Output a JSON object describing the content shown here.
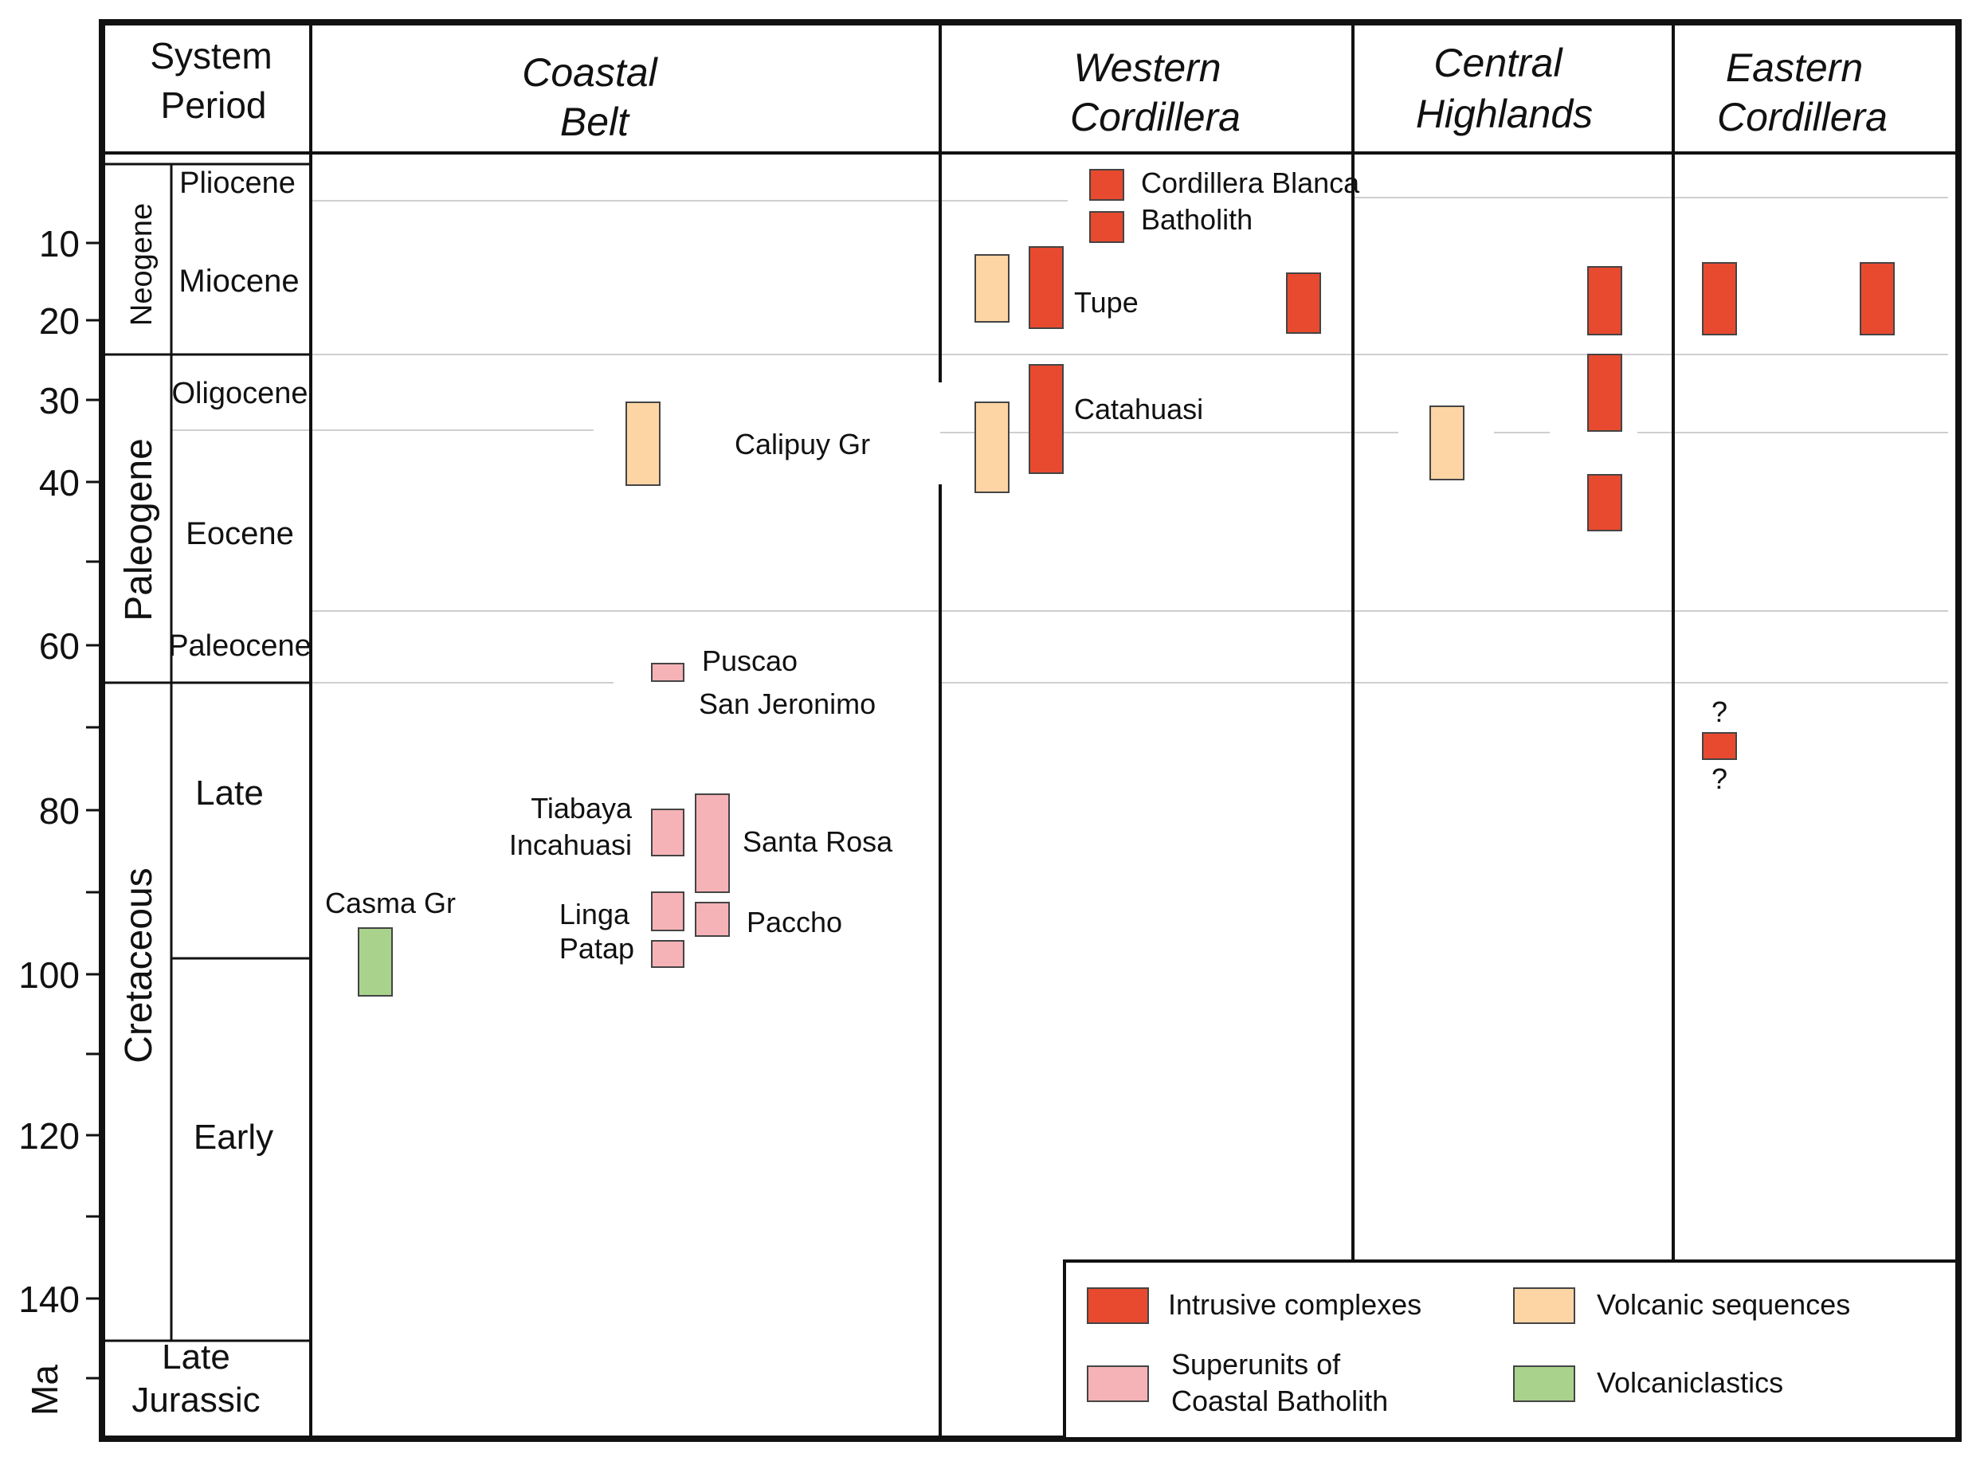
{
  "colors": {
    "intrusive": "#e84a2f",
    "superunit": "#f5b3b7",
    "volcanic": "#fdd5a5",
    "volcaniclastic": "#a9d38c",
    "frame": "#111111",
    "gridline": "#cfcfcf"
  },
  "header": {
    "system_period": [
      "System",
      "Period"
    ],
    "coastal_belt": [
      "Coastal",
      "Belt"
    ],
    "western_cordillera": [
      "Western",
      "Cordillera"
    ],
    "central_highlands": [
      "Central",
      "Highlands"
    ],
    "eastern_cordillera": [
      "Eastern",
      "Cordillera"
    ]
  },
  "axis": {
    "unit": "Ma",
    "ticks": [
      "10",
      "20",
      "30",
      "40",
      "60",
      "80",
      "100",
      "120",
      "140"
    ]
  },
  "systems": {
    "neogene": "Neogene",
    "paleogene": "Paleogene",
    "cretaceous": "Cretaceous",
    "late_jurassic": [
      "Late",
      "Jurassic"
    ]
  },
  "periods": {
    "pliocene": "Pliocene",
    "miocene": "Miocene",
    "oligocene": "Oligocene",
    "eocene": "Eocene",
    "paleocene": "Paleocene",
    "late": "Late",
    "early": "Early"
  },
  "units": {
    "calipuy": "Calipuy Gr",
    "puscao": "Puscao",
    "san_jeronimo": "San Jeronimo",
    "tiabaya": "Tiabaya",
    "incahuasi": "Incahuasi",
    "santa_rosa": "Santa Rosa",
    "linga": "Linga",
    "patap": "Patap",
    "paccho": "Paccho",
    "casma": "Casma Gr",
    "cordillera_blanca": "Cordillera Blanca",
    "batholith": "Batholith",
    "tupe": "Tupe",
    "catahuasi": "Catahuasi",
    "question": "?"
  },
  "legend": {
    "intrusive": "Intrusive complexes",
    "volcanic": "Volcanic sequences",
    "superunits": [
      "Superunits of",
      "Coastal Batholith"
    ],
    "volcaniclastics": "Volcaniclastics"
  }
}
